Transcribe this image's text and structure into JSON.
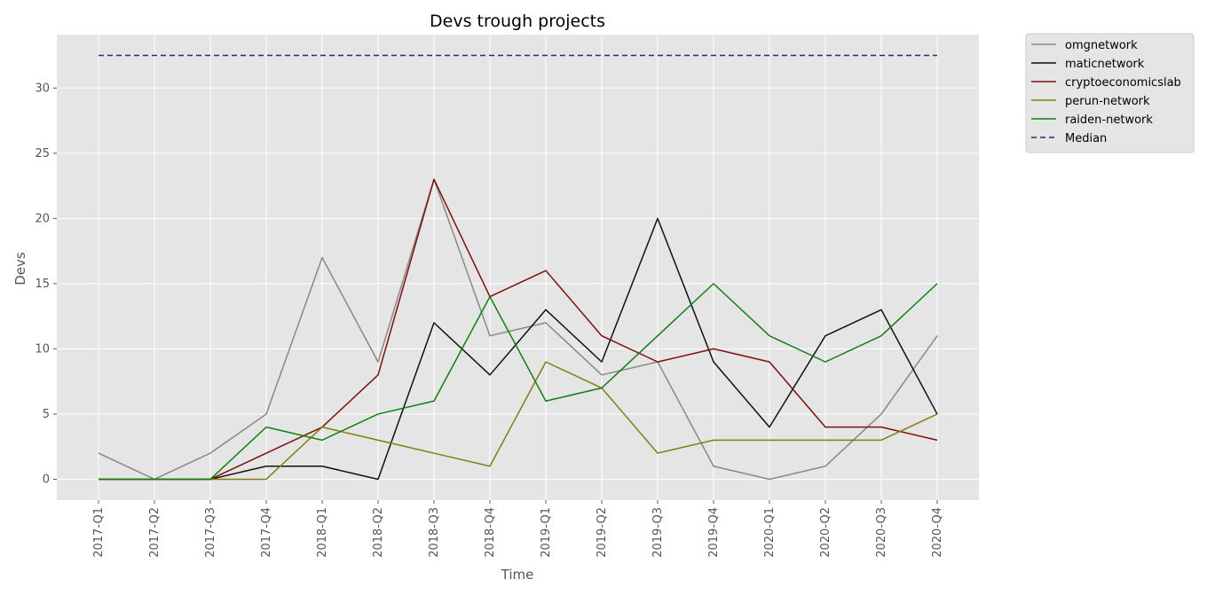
{
  "chart_data": {
    "type": "line",
    "title": "Devs trough projects",
    "xlabel": "Time",
    "ylabel": "Devs",
    "categories": [
      "2017-Q1",
      "2017-Q2",
      "2017-Q3",
      "2017-Q4",
      "2018-Q1",
      "2018-Q2",
      "2018-Q3",
      "2018-Q4",
      "2019-Q1",
      "2019-Q2",
      "2019-Q3",
      "2019-Q4",
      "2020-Q1",
      "2020-Q2",
      "2020-Q3",
      "2020-Q4"
    ],
    "ylim": [
      -1.6,
      34.1
    ],
    "yticks": [
      0,
      5,
      10,
      15,
      20,
      25,
      30
    ],
    "grid": true,
    "legend_position": "outside-top-right",
    "series": [
      {
        "name": "omgnetwork",
        "color": "#888888",
        "dashed": false,
        "values": [
          2,
          0,
          2,
          5,
          17,
          9,
          23,
          11,
          12,
          8,
          9,
          1,
          0,
          1,
          5,
          11
        ]
      },
      {
        "name": "maticnetwork",
        "color": "#111111",
        "dashed": false,
        "values": [
          0,
          0,
          0,
          1,
          1,
          0,
          12,
          8,
          13,
          9,
          20,
          9,
          4,
          11,
          13,
          5
        ]
      },
      {
        "name": "cryptoeconomicslab",
        "color": "#7f0e0e",
        "dashed": false,
        "values": [
          0,
          0,
          0,
          2,
          4,
          8,
          23,
          14,
          16,
          11,
          9,
          10,
          9,
          4,
          4,
          3
        ]
      },
      {
        "name": "perun-network",
        "color": "#808010",
        "dashed": false,
        "values": [
          0,
          0,
          0,
          0,
          4,
          3,
          2,
          1,
          9,
          7,
          2,
          3,
          3,
          3,
          3,
          5
        ]
      },
      {
        "name": "raiden-network",
        "color": "#108010",
        "dashed": false,
        "values": [
          0,
          0,
          0,
          4,
          3,
          5,
          6,
          14,
          6,
          7,
          11,
          15,
          11,
          9,
          11,
          15
        ]
      },
      {
        "name": "Median",
        "color": "#2a2a7a",
        "dashed": true,
        "values": [
          32.5,
          32.5,
          32.5,
          32.5,
          32.5,
          32.5,
          32.5,
          32.5,
          32.5,
          32.5,
          32.5,
          32.5,
          32.5,
          32.5,
          32.5,
          32.5
        ]
      }
    ]
  }
}
